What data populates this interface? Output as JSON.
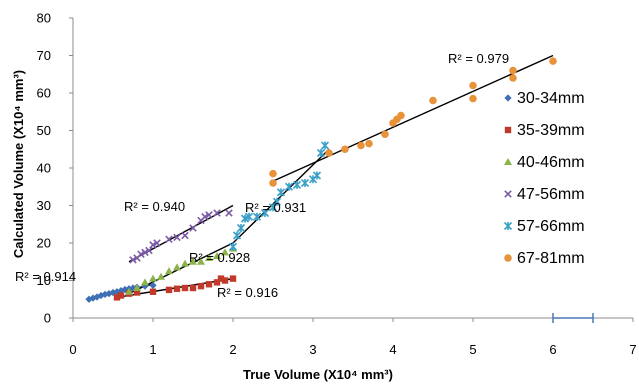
{
  "chart_data": {
    "type": "scatter",
    "xlabel": "True Volume (X10⁴ mm³)",
    "ylabel": "Calculated Volume (X10⁴ mm³)",
    "xlim": [
      0,
      7
    ],
    "ylim": [
      0,
      80
    ],
    "xticks": [
      "0",
      "1",
      "2",
      "3",
      "4",
      "5",
      "6",
      "7"
    ],
    "yticks": [
      "0",
      "10",
      "20",
      "30",
      "40",
      "50",
      "60",
      "70",
      "80"
    ],
    "grid": false,
    "legend_position": "right",
    "series": [
      {
        "name": "30-34mm",
        "marker": "diamond",
        "color": "#3f6fb4",
        "points": [
          [
            0.2,
            5.0
          ],
          [
            0.25,
            5.3
          ],
          [
            0.3,
            5.6
          ],
          [
            0.35,
            6.0
          ],
          [
            0.4,
            6.3
          ],
          [
            0.45,
            6.5
          ],
          [
            0.5,
            6.8
          ],
          [
            0.55,
            7.0
          ],
          [
            0.6,
            7.3
          ],
          [
            0.65,
            7.6
          ],
          [
            0.7,
            7.8
          ],
          [
            0.75,
            8.0
          ],
          [
            0.8,
            8.2
          ],
          [
            0.9,
            8.5
          ],
          [
            1.0,
            8.7
          ]
        ],
        "trendline": {
          "from": [
            0.2,
            5.0
          ],
          "to": [
            1.0,
            9.0
          ],
          "r2_label": "R² = 0.914"
        }
      },
      {
        "name": "35-39mm",
        "marker": "square",
        "color": "#c0392b",
        "points": [
          [
            0.55,
            5.5
          ],
          [
            0.6,
            6.0
          ],
          [
            0.7,
            6.5
          ],
          [
            0.8,
            6.8
          ],
          [
            1.0,
            7.0
          ],
          [
            1.2,
            7.5
          ],
          [
            1.3,
            7.8
          ],
          [
            1.4,
            8.0
          ],
          [
            1.5,
            8.0
          ],
          [
            1.6,
            8.5
          ],
          [
            1.7,
            9.0
          ],
          [
            1.8,
            9.5
          ],
          [
            1.85,
            10.5
          ],
          [
            1.9,
            10.0
          ],
          [
            2.0,
            10.5
          ]
        ],
        "trendline": {
          "from": [
            0.55,
            5.5
          ],
          "to": [
            2.0,
            10.5
          ],
          "r2_label": "R² = 0.916"
        }
      },
      {
        "name": "40-46mm",
        "marker": "triangle",
        "color": "#8bb34a",
        "points": [
          [
            0.7,
            7.0
          ],
          [
            0.8,
            8.0
          ],
          [
            0.9,
            9.5
          ],
          [
            1.0,
            10.5
          ],
          [
            1.1,
            11.0
          ],
          [
            1.2,
            12.5
          ],
          [
            1.3,
            13.5
          ],
          [
            1.4,
            14.5
          ],
          [
            1.5,
            15.0
          ],
          [
            1.6,
            15.0
          ],
          [
            1.7,
            16.0
          ],
          [
            1.8,
            16.5
          ],
          [
            1.9,
            17.5
          ],
          [
            2.0,
            18.5
          ]
        ],
        "trendline": {
          "from": [
            0.7,
            6.5
          ],
          "to": [
            2.0,
            20.0
          ],
          "r2_label": "R² = 0.928"
        }
      },
      {
        "name": "47-56mm",
        "marker": "x",
        "color": "#7b5aa6",
        "points": [
          [
            0.75,
            15.5
          ],
          [
            0.8,
            16.0
          ],
          [
            0.85,
            17.0
          ],
          [
            0.9,
            17.5
          ],
          [
            0.95,
            18.0
          ],
          [
            1.0,
            19.5
          ],
          [
            1.05,
            20.0
          ],
          [
            1.2,
            21.0
          ],
          [
            1.3,
            21.5
          ],
          [
            1.4,
            22.0
          ],
          [
            1.5,
            24.0
          ],
          [
            1.6,
            26.0
          ],
          [
            1.65,
            27.0
          ],
          [
            1.7,
            27.5
          ],
          [
            1.8,
            28.0
          ],
          [
            1.95,
            28.0
          ]
        ],
        "trendline": {
          "from": [
            0.7,
            15.0
          ],
          "to": [
            2.0,
            30.0
          ],
          "r2_label": "R² = 0.940"
        }
      },
      {
        "name": "57-66mm",
        "marker": "star",
        "color": "#3aa0c8",
        "points": [
          [
            2.0,
            19.0
          ],
          [
            2.05,
            22.0
          ],
          [
            2.1,
            24.0
          ],
          [
            2.15,
            26.5
          ],
          [
            2.2,
            27.0
          ],
          [
            2.3,
            27.0
          ],
          [
            2.4,
            28.0
          ],
          [
            2.5,
            29.5
          ],
          [
            2.55,
            31.0
          ],
          [
            2.6,
            33.5
          ],
          [
            2.7,
            35.0
          ],
          [
            2.8,
            35.5
          ],
          [
            2.9,
            36.0
          ],
          [
            3.0,
            37.0
          ],
          [
            3.05,
            38.0
          ],
          [
            3.1,
            44.0
          ],
          [
            3.15,
            46.0
          ]
        ],
        "trendline": {
          "from": [
            2.0,
            20.0
          ],
          "to": [
            3.2,
            45.0
          ],
          "r2_label": "R² = 0.931"
        }
      },
      {
        "name": "67-81mm",
        "marker": "circle",
        "color": "#e8923a",
        "points": [
          [
            2.5,
            36.0
          ],
          [
            2.5,
            38.5
          ],
          [
            3.2,
            44.0
          ],
          [
            3.4,
            45.0
          ],
          [
            3.6,
            46.0
          ],
          [
            3.7,
            46.5
          ],
          [
            3.9,
            49.0
          ],
          [
            4.0,
            52.0
          ],
          [
            4.05,
            53.0
          ],
          [
            4.1,
            54.0
          ],
          [
            4.5,
            58.0
          ],
          [
            5.0,
            58.5
          ],
          [
            5.0,
            62.0
          ],
          [
            5.5,
            64.0
          ],
          [
            5.5,
            66.0
          ],
          [
            6.0,
            68.5
          ]
        ],
        "trendline": {
          "from": [
            2.5,
            36.5
          ],
          "to": [
            6.0,
            70.0
          ],
          "r2_label": "R² = 0.979"
        }
      }
    ]
  }
}
